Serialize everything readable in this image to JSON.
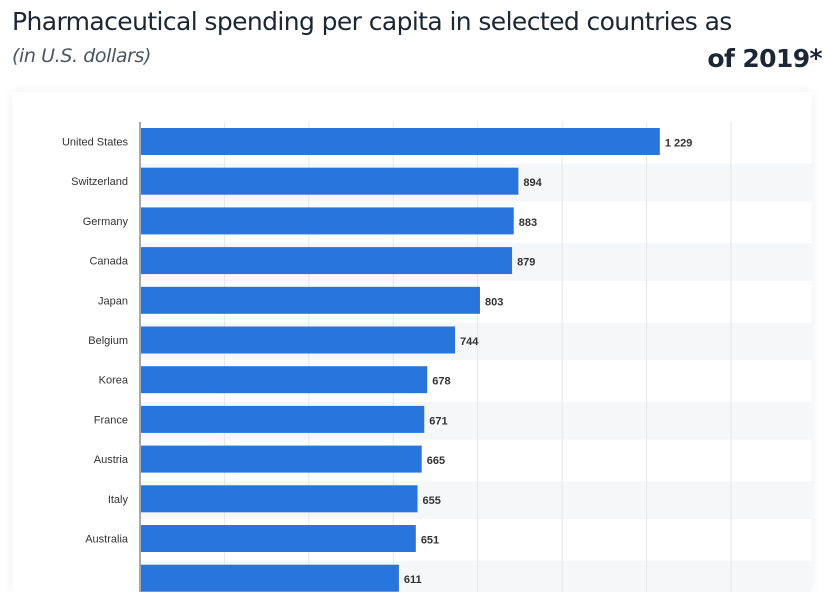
{
  "title_line1": "Pharmaceutical spending per capita in selected countries as",
  "title_line2": "of 2019*",
  "subtitle": "(in U.S. dollars)",
  "chart_data": {
    "type": "bar",
    "orientation": "horizontal",
    "categories": [
      "United States",
      "Switzerland",
      "Germany",
      "Canada",
      "Japan",
      "Belgium",
      "Korea",
      "France",
      "Austria",
      "Italy",
      "Australia",
      ""
    ],
    "values": [
      1229,
      894,
      883,
      879,
      803,
      744,
      678,
      671,
      665,
      655,
      651,
      611
    ],
    "value_labels": [
      "1 229",
      "894",
      "883",
      "879",
      "803",
      "744",
      "678",
      "671",
      "665",
      "655",
      "651",
      "611"
    ],
    "xlim": [
      0,
      1400
    ],
    "grid": true,
    "bar_color": "#2876dd"
  }
}
